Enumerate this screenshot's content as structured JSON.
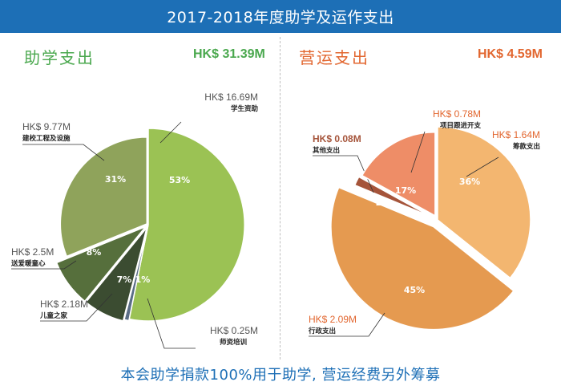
{
  "title": "2017-2018年度助学及运作支出",
  "footer": "本会助学捐款100%用于助学, 营运经费另外筹募",
  "colors": {
    "header_bg": "#1d6fb6",
    "aid": "#4aa84e",
    "ops": "#e2662f"
  },
  "chart_data": [
    {
      "type": "pie",
      "title": "助学支出",
      "total": "HK$ 31.39M",
      "slices": [
        {
          "label": "学生资助",
          "amount": "HK$ 16.69M",
          "value": 16.69,
          "pct": "53%",
          "color": "#9bc254"
        },
        {
          "label": "师资培训",
          "amount": "HK$ 0.25M",
          "value": 0.25,
          "pct": "1%",
          "color": "#5a6d86"
        },
        {
          "label": "儿童之家",
          "amount": "HK$ 2.18M",
          "value": 2.18,
          "pct": "7%",
          "color": "#3b4c31"
        },
        {
          "label": "送爱暖童心",
          "amount": "HK$ 2.5M",
          "value": 2.5,
          "pct": "8%",
          "color": "#566f3c"
        },
        {
          "label": "建校工程及设施",
          "amount": "HK$ 9.77M",
          "value": 9.77,
          "pct": "31%",
          "color": "#8fa35b"
        }
      ]
    },
    {
      "type": "pie",
      "title": "营运支出",
      "total": "HK$ 4.59M",
      "slices": [
        {
          "label": "筹款支出",
          "amount": "HK$ 1.64M",
          "value": 1.64,
          "pct": "36%",
          "color": "#f3b670"
        },
        {
          "label": "行政支出",
          "amount": "HK$ 2.09M",
          "value": 2.09,
          "pct": "45%",
          "color": "#e59a50"
        },
        {
          "label": "其他支出",
          "amount": "HK$ 0.08M",
          "value": 0.08,
          "pct": "2%",
          "color": "#a5543a"
        },
        {
          "label": "项目跟进开支",
          "amount": "HK$ 0.78M",
          "value": 0.78,
          "pct": "17%",
          "color": "#ee8d67"
        }
      ]
    }
  ]
}
